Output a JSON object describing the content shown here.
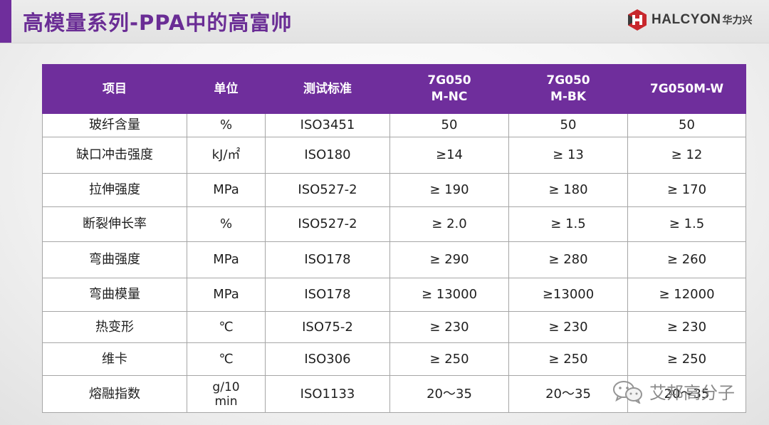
{
  "header": {
    "title": "高模量系列-PPA中的高富帅",
    "logo_text": "HALCYON",
    "logo_cn": "华力兴",
    "accent_color": "#6f2e9c"
  },
  "table": {
    "columns": [
      {
        "lines": [
          "项目"
        ]
      },
      {
        "lines": [
          "单位"
        ]
      },
      {
        "lines": [
          "测试标准"
        ]
      },
      {
        "lines": [
          "7G050",
          "M-NC"
        ]
      },
      {
        "lines": [
          "7G050",
          "M-BK"
        ]
      },
      {
        "lines": [
          "7G050M-W"
        ]
      }
    ],
    "rows": [
      {
        "item": "玻纤含量",
        "unit": "%",
        "standard": "ISO3451",
        "nc": "50",
        "bk": "50",
        "w": "50"
      },
      {
        "item": "缺口冲击强度",
        "unit": "kJ/㎡",
        "standard": "ISO180",
        "nc": "≥14",
        "bk": "≥ 13",
        "w": "≥ 12"
      },
      {
        "item": "拉伸强度",
        "unit": "MPa",
        "standard": "ISO527-2",
        "nc": "≥ 190",
        "bk": "≥ 180",
        "w": "≥ 170"
      },
      {
        "item": "断裂伸长率",
        "unit": "%",
        "standard": "ISO527-2",
        "nc": "≥ 2.0",
        "bk": "≥ 1.5",
        "w": "≥ 1.5"
      },
      {
        "item": "弯曲强度",
        "unit": "MPa",
        "standard": "ISO178",
        "nc": "≥ 290",
        "bk": "≥ 280",
        "w": "≥ 260"
      },
      {
        "item": "弯曲模量",
        "unit": "MPa",
        "standard": "ISO178",
        "nc": "≥ 13000",
        "bk": "≥13000",
        "w": "≥ 12000"
      },
      {
        "item": "热变形",
        "unit": "℃",
        "standard": "ISO75-2",
        "nc": "≥ 230",
        "bk": "≥ 230",
        "w": "≥ 230"
      },
      {
        "item": "维卡",
        "unit": "℃",
        "standard": "ISO306",
        "nc": "≥ 250",
        "bk": "≥ 250",
        "w": "≥ 250"
      },
      {
        "item": "熔融指数",
        "unit_lines": [
          "g/10",
          "min"
        ],
        "standard": "ISO1133",
        "nc": "20～35",
        "bk": "20～35",
        "w": "20～35"
      }
    ]
  },
  "watermark": {
    "text": "艾邦高分子",
    "icon": "wechat-icon"
  }
}
